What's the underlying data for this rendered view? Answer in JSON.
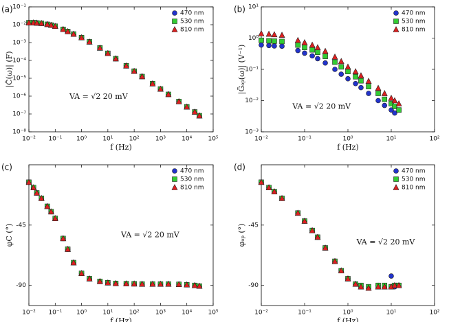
{
  "chart_data": [
    {
      "type": "scatter",
      "label": "(a)",
      "xlabel": "f (Hz)",
      "ylabel": "|C̃(ω)| (F)",
      "annotation": "VA = √2 20 mV",
      "xscale": "log",
      "yscale": "log",
      "xlim": [
        0.01,
        100000
      ],
      "ylim": [
        1e-08,
        0.1
      ],
      "xticks": [
        {
          "value": 0.01,
          "label": "10⁻²"
        },
        {
          "value": 0.1,
          "label": "10⁻¹"
        },
        {
          "value": 1,
          "label": "10⁰"
        },
        {
          "value": 10,
          "label": "10¹"
        },
        {
          "value": 100,
          "label": "10²"
        },
        {
          "value": 1000,
          "label": "10³"
        },
        {
          "value": 10000,
          "label": "10⁴"
        },
        {
          "value": 100000,
          "label": "10⁵"
        }
      ],
      "yticks": [
        {
          "value": 1e-08,
          "label": "10⁻⁸"
        },
        {
          "value": 1e-07,
          "label": "10⁻⁷"
        },
        {
          "value": 1e-06,
          "label": "10⁻⁶"
        },
        {
          "value": 1e-05,
          "label": "10⁻⁵"
        },
        {
          "value": 0.0001,
          "label": "10⁻⁴"
        },
        {
          "value": 0.001,
          "label": "10⁻³"
        },
        {
          "value": 0.01,
          "label": "10⁻²"
        },
        {
          "value": 0.1,
          "label": "10⁻¹"
        }
      ],
      "legend": "upper right",
      "x": [
        0.01,
        0.015,
        0.02,
        0.03,
        0.05,
        0.07,
        0.1,
        0.2,
        0.3,
        0.5,
        1,
        2,
        5,
        10,
        20,
        50,
        100,
        200,
        500,
        1000,
        2000,
        5000,
        10000,
        20000,
        30000
      ],
      "series": [
        {
          "name": "470 nm",
          "color": "#2233cc",
          "marker": "circle",
          "values": [
            0.013,
            0.013,
            0.0125,
            0.012,
            0.0105,
            0.0095,
            0.0082,
            0.0055,
            0.0042,
            0.003,
            0.0019,
            0.0011,
            0.0005,
            0.00025,
            0.000125,
            5e-05,
            2.5e-05,
            1.25e-05,
            5e-06,
            2.5e-06,
            1.25e-06,
            5e-07,
            2.5e-07,
            1.3e-07,
            8e-08
          ]
        },
        {
          "name": "530 nm",
          "color": "#33cc33",
          "marker": "square",
          "values": [
            0.013,
            0.013,
            0.0125,
            0.012,
            0.0105,
            0.0095,
            0.0082,
            0.0055,
            0.0042,
            0.003,
            0.0019,
            0.0011,
            0.0005,
            0.00025,
            0.000125,
            5e-05,
            2.5e-05,
            1.25e-05,
            5e-06,
            2.5e-06,
            1.25e-06,
            5e-07,
            2.5e-07,
            1.3e-07,
            8e-08
          ]
        },
        {
          "name": "810 nm",
          "color": "#dd2020",
          "marker": "triangle",
          "values": [
            0.013,
            0.013,
            0.0125,
            0.012,
            0.0105,
            0.0095,
            0.0082,
            0.0055,
            0.0042,
            0.003,
            0.0019,
            0.0011,
            0.0005,
            0.00025,
            0.000125,
            5e-05,
            2.5e-05,
            1.25e-05,
            5e-06,
            2.5e-06,
            1.25e-06,
            5e-07,
            2.5e-07,
            1.3e-07,
            8e-08
          ]
        }
      ]
    },
    {
      "type": "scatter",
      "label": "(b)",
      "xlabel": "f (Hz)",
      "ylabel": "|G̃ₒₚ(ω)| (V⁻¹)",
      "annotation": "VA = √2 20 mV",
      "xscale": "log",
      "yscale": "log",
      "xlim": [
        0.01,
        100
      ],
      "ylim": [
        0.001,
        10
      ],
      "xticks": [
        {
          "value": 0.01,
          "label": "10⁻²"
        },
        {
          "value": 0.1,
          "label": "10⁻¹"
        },
        {
          "value": 1,
          "label": "10⁰"
        },
        {
          "value": 10,
          "label": "10¹"
        },
        {
          "value": 100,
          "label": "10²"
        }
      ],
      "yticks": [
        {
          "value": 0.001,
          "label": "10⁻³"
        },
        {
          "value": 0.01,
          "label": "10⁻²"
        },
        {
          "value": 0.1,
          "label": "10⁻¹"
        },
        {
          "value": 1,
          "label": "10⁰"
        },
        {
          "value": 10,
          "label": "10¹"
        }
      ],
      "legend": "upper right",
      "x": [
        0.01,
        0.015,
        0.02,
        0.03,
        0.07,
        0.1,
        0.15,
        0.2,
        0.3,
        0.5,
        0.7,
        1,
        1.5,
        2,
        3,
        5,
        7,
        10,
        12,
        15
      ],
      "series": [
        {
          "name": "470 nm",
          "color": "#2233cc",
          "marker": "circle",
          "values": [
            0.6,
            0.58,
            0.56,
            0.55,
            0.4,
            0.33,
            0.27,
            0.22,
            0.16,
            0.1,
            0.07,
            0.05,
            0.035,
            0.026,
            0.017,
            0.01,
            0.007,
            0.005,
            0.004,
            null
          ]
        },
        {
          "name": "530 nm",
          "color": "#33cc33",
          "marker": "square",
          "values": [
            0.85,
            0.82,
            0.8,
            0.78,
            0.6,
            0.5,
            0.42,
            0.35,
            0.26,
            0.17,
            0.12,
            0.085,
            0.058,
            0.043,
            0.028,
            0.017,
            0.011,
            0.008,
            0.0065,
            0.005
          ]
        },
        {
          "name": "810 nm",
          "color": "#dd2020",
          "marker": "triangle",
          "values": [
            1.4,
            1.35,
            1.3,
            1.25,
            0.85,
            0.72,
            0.6,
            0.5,
            0.38,
            0.25,
            0.18,
            0.12,
            0.085,
            0.063,
            0.042,
            0.025,
            0.017,
            0.012,
            0.01,
            0.008
          ]
        }
      ]
    },
    {
      "type": "scatter",
      "label": "(c)",
      "xlabel": "f (Hz)",
      "ylabel": "φC (°)",
      "annotation": "VA = √2 20 mV",
      "xscale": "log",
      "xlim": [
        0.01,
        100000
      ],
      "ylim": [
        -105,
        0
      ],
      "xticks": [
        {
          "value": 0.01,
          "label": "10⁻²"
        },
        {
          "value": 0.1,
          "label": "10⁻¹"
        },
        {
          "value": 1,
          "label": "10⁰"
        },
        {
          "value": 10,
          "label": "10¹"
        },
        {
          "value": 100,
          "label": "10²"
        },
        {
          "value": 1000,
          "label": "10³"
        },
        {
          "value": 10000,
          "label": "10⁴"
        },
        {
          "value": 100000,
          "label": "10⁵"
        }
      ],
      "yticks": [
        -90,
        -45
      ],
      "legend": "upper right",
      "x": [
        0.01,
        0.015,
        0.02,
        0.03,
        0.05,
        0.07,
        0.1,
        0.2,
        0.3,
        0.5,
        1,
        2,
        5,
        10,
        20,
        50,
        100,
        200,
        500,
        1000,
        2000,
        5000,
        10000,
        20000,
        30000
      ],
      "series": [
        {
          "name": "470 nm",
          "color": "#2233cc",
          "marker": "circle",
          "values": [
            -13,
            -17,
            -21,
            -25,
            -31,
            -35,
            -40,
            -55,
            -63,
            -73,
            -81,
            -85,
            -87,
            -88,
            -88.5,
            -88.7,
            -88.8,
            -89,
            -89,
            -89,
            -89,
            -89.2,
            -89.5,
            -90,
            -90.5
          ]
        },
        {
          "name": "530 nm",
          "color": "#33cc33",
          "marker": "square",
          "values": [
            -13,
            -17,
            -21,
            -25,
            -31,
            -35,
            -40,
            -55,
            -63,
            -73,
            -81,
            -85,
            -87,
            -88,
            -88.5,
            -88.7,
            -88.8,
            -89,
            -89,
            -89,
            -89,
            -89.2,
            -89.5,
            -90,
            -90.5
          ]
        },
        {
          "name": "810 nm",
          "color": "#dd2020",
          "marker": "triangle",
          "values": [
            -13,
            -17,
            -21,
            -25,
            -31,
            -35,
            -40,
            -55,
            -63,
            -73,
            -81,
            -85,
            -87,
            -88,
            -88.5,
            -88.7,
            -88.8,
            -89,
            -89,
            -89,
            -89,
            -89.2,
            -89.5,
            -90,
            -90.5
          ]
        }
      ]
    },
    {
      "type": "scatter",
      "label": "(d)",
      "xlabel": "f (Hz)",
      "ylabel": "φₒₚ (°)",
      "annotation": "VA = √2 20 mV",
      "xscale": "log",
      "xlim": [
        0.01,
        100
      ],
      "ylim": [
        -105,
        0
      ],
      "xticks": [
        {
          "value": 0.01,
          "label": "10⁻²"
        },
        {
          "value": 0.1,
          "label": "10⁻¹"
        },
        {
          "value": 1,
          "label": "10⁰"
        },
        {
          "value": 10,
          "label": "10¹"
        },
        {
          "value": 100,
          "label": "10²"
        }
      ],
      "yticks": [
        -90,
        -45
      ],
      "legend": "upper right",
      "x": [
        0.01,
        0.015,
        0.02,
        0.03,
        0.07,
        0.1,
        0.15,
        0.2,
        0.3,
        0.5,
        0.7,
        1,
        1.5,
        2,
        3,
        5,
        7,
        10,
        12,
        15
      ],
      "series": [
        {
          "name": "470 nm",
          "color": "#2233cc",
          "marker": "circle",
          "values": [
            -13,
            -17,
            -20,
            -25,
            -36,
            -42,
            -49,
            -54,
            -62,
            -72,
            -79,
            -85,
            -89,
            -91,
            -91,
            -90,
            -91,
            -83,
            -91,
            null
          ]
        },
        {
          "name": "530 nm",
          "color": "#33cc33",
          "marker": "square",
          "values": [
            -13,
            -17,
            -20,
            -25,
            -36,
            -42,
            -49,
            -54,
            -62,
            -72,
            -79,
            -85,
            -89,
            -90,
            -91,
            -90,
            -90,
            -91,
            -90,
            -90
          ]
        },
        {
          "name": "810 nm",
          "color": "#dd2020",
          "marker": "triangle",
          "values": [
            -13,
            -17,
            -20,
            -25,
            -36,
            -42,
            -49,
            -54,
            -62,
            -72,
            -79,
            -85,
            -89,
            -91,
            -92,
            -91,
            -91,
            -91,
            -90,
            -90
          ]
        }
      ]
    }
  ]
}
